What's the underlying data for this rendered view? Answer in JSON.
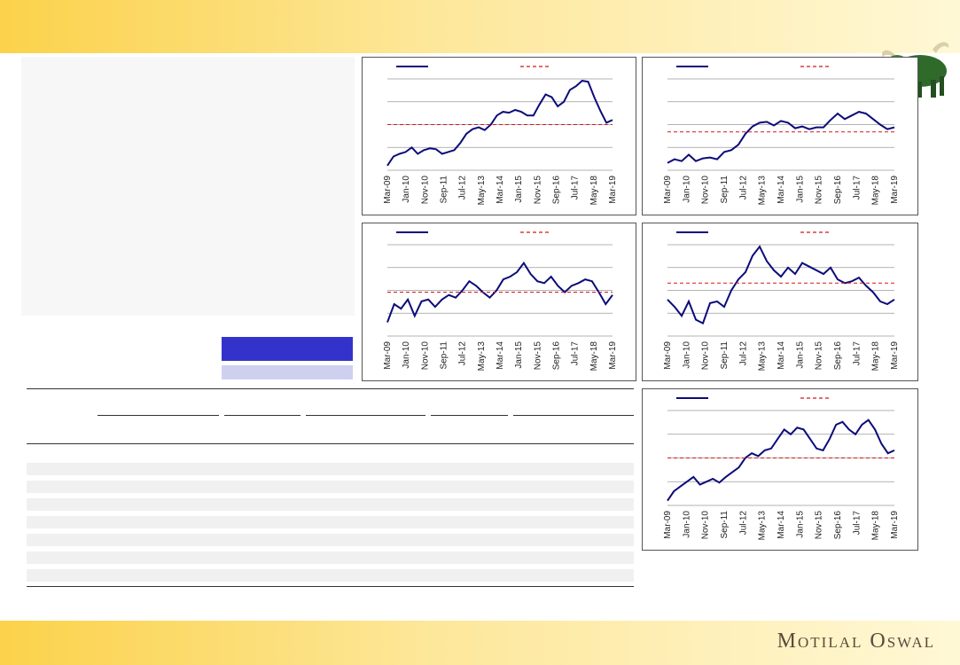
{
  "footer": {
    "brand": "Motilal Oswal"
  },
  "colors": {
    "series": "#0b0b7a",
    "average": "#d01818",
    "band_start": "#fbd24a",
    "band_end": "#fff8d6",
    "blue_bar": "#3333cc",
    "lavender_bar": "#cfd0f0"
  },
  "icons": {
    "bull": "bull-icon"
  },
  "chart_data": [
    {
      "type": "line",
      "x_ticks": [
        "Mar-09",
        "Jan-10",
        "Nov-10",
        "Sep-11",
        "Jul-12",
        "May-13",
        "Mar-14",
        "Jan-15",
        "Nov-15",
        "Sep-16",
        "Jul-17",
        "May-18",
        "Mar-19"
      ],
      "series": [
        {
          "values": [
            0.05,
            0.15,
            0.18,
            0.2,
            0.25,
            0.18,
            0.22,
            0.24,
            0.23,
            0.18,
            0.2,
            0.22,
            0.3,
            0.4,
            0.45,
            0.47,
            0.44,
            0.5,
            0.6,
            0.64,
            0.63,
            0.66,
            0.64,
            0.6,
            0.6,
            0.72,
            0.83,
            0.8,
            0.7,
            0.75,
            0.88,
            0.92,
            0.98,
            0.97,
            0.8,
            0.65,
            0.52,
            0.55
          ]
        }
      ],
      "average": 0.5,
      "legend": "top",
      "grid": true
    },
    {
      "type": "line",
      "x_ticks": [
        "Mar-09",
        "Jan-10",
        "Nov-10",
        "Sep-11",
        "Jul-12",
        "May-13",
        "Mar-14",
        "Jan-15",
        "Nov-15",
        "Sep-16",
        "Jul-17",
        "May-18",
        "Mar-19"
      ],
      "series": [
        {
          "values": [
            0.08,
            0.12,
            0.1,
            0.17,
            0.1,
            0.13,
            0.14,
            0.12,
            0.2,
            0.22,
            0.28,
            0.4,
            0.48,
            0.52,
            0.53,
            0.49,
            0.54,
            0.52,
            0.46,
            0.48,
            0.45,
            0.47,
            0.47,
            0.55,
            0.62,
            0.56,
            0.6,
            0.64,
            0.62,
            0.56,
            0.5,
            0.45,
            0.47
          ]
        }
      ],
      "average": 0.42,
      "legend": "top",
      "grid": true
    },
    {
      "type": "line",
      "x_ticks": [
        "Mar-09",
        "Jan-10",
        "Nov-10",
        "Sep-11",
        "Jul-12",
        "May-13",
        "Mar-14",
        "Jan-15",
        "Nov-15",
        "Sep-16",
        "Jul-17",
        "May-18",
        "Mar-19"
      ],
      "series": [
        {
          "values": [
            0.15,
            0.35,
            0.3,
            0.4,
            0.22,
            0.38,
            0.4,
            0.32,
            0.4,
            0.45,
            0.42,
            0.5,
            0.6,
            0.55,
            0.48,
            0.42,
            0.5,
            0.62,
            0.65,
            0.7,
            0.8,
            0.68,
            0.6,
            0.58,
            0.65,
            0.55,
            0.48,
            0.55,
            0.58,
            0.62,
            0.6,
            0.48,
            0.35,
            0.45
          ]
        }
      ],
      "average": 0.48,
      "legend": "top",
      "grid": true
    },
    {
      "type": "line",
      "x_ticks": [
        "Mar-09",
        "Jan-10",
        "Nov-10",
        "Sep-11",
        "Jul-12",
        "May-13",
        "Mar-14",
        "Jan-15",
        "Nov-15",
        "Sep-16",
        "Jul-17",
        "May-18",
        "Mar-19"
      ],
      "series": [
        {
          "values": [
            0.4,
            0.32,
            0.22,
            0.38,
            0.18,
            0.14,
            0.36,
            0.38,
            0.32,
            0.5,
            0.62,
            0.7,
            0.88,
            0.98,
            0.82,
            0.72,
            0.65,
            0.75,
            0.68,
            0.8,
            0.76,
            0.72,
            0.68,
            0.75,
            0.62,
            0.58,
            0.6,
            0.64,
            0.55,
            0.48,
            0.38,
            0.35,
            0.4
          ]
        }
      ],
      "average": 0.58,
      "legend": "top",
      "grid": true
    },
    {
      "type": "line",
      "x_ticks": [
        "Mar-09",
        "Jan-10",
        "Nov-10",
        "Sep-11",
        "Jul-12",
        "May-13",
        "Mar-14",
        "Jan-15",
        "Nov-15",
        "Sep-16",
        "Jul-17",
        "May-18",
        "Mar-19"
      ],
      "series": [
        {
          "values": [
            0.05,
            0.15,
            0.2,
            0.25,
            0.3,
            0.22,
            0.25,
            0.28,
            0.24,
            0.3,
            0.35,
            0.4,
            0.5,
            0.55,
            0.52,
            0.58,
            0.6,
            0.7,
            0.8,
            0.75,
            0.82,
            0.8,
            0.7,
            0.6,
            0.58,
            0.7,
            0.85,
            0.88,
            0.8,
            0.75,
            0.85,
            0.9,
            0.8,
            0.65,
            0.55,
            0.58
          ]
        }
      ],
      "average": 0.5,
      "legend": "top",
      "grid": true
    }
  ],
  "table": {
    "group_underlines": 5,
    "shaded_rows": 7
  }
}
